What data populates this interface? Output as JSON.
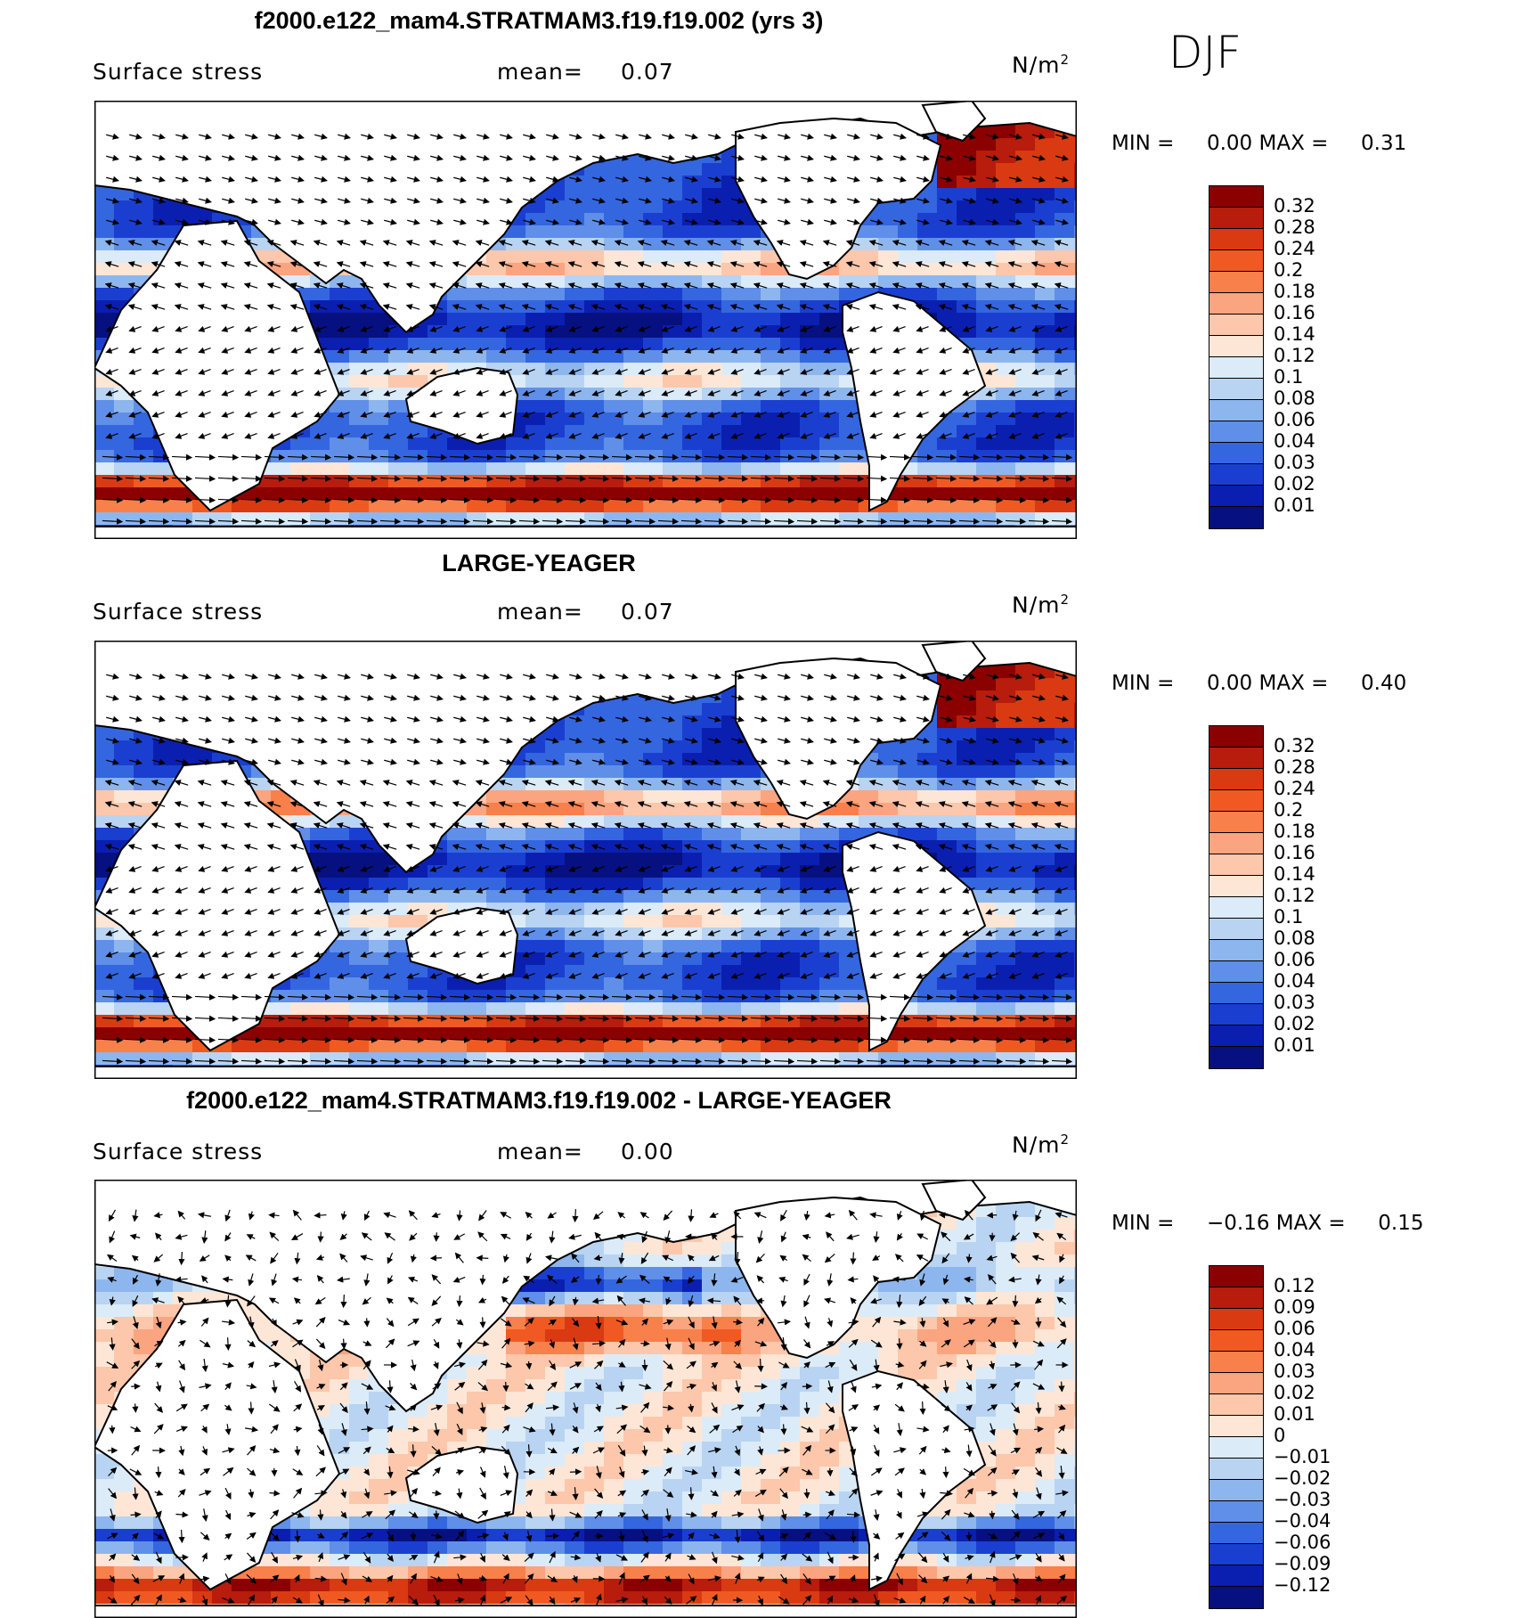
{
  "season": "DJF",
  "panels": [
    {
      "title": "f2000.e122_mam4.STRATMAM3.f19.f19.002 (yrs 3)",
      "variable": "Surface stress",
      "mean_label": "mean=",
      "mean_value": "0.07",
      "units": "N/m",
      "units_sup": "2",
      "min_label": "MIN =",
      "min_value": "0.00",
      "max_label": "MAX =",
      "max_value": "0.31",
      "colorbar": {
        "labels": [
          "0.32",
          "0.28",
          "0.24",
          "0.2",
          "0.18",
          "0.16",
          "0.14",
          "0.12",
          "0.1",
          "0.08",
          "0.06",
          "0.04",
          "0.03",
          "0.02",
          "0.01"
        ],
        "colors": [
          "#8b0000",
          "#b71c0c",
          "#d93a12",
          "#f05a22",
          "#f8804a",
          "#fba480",
          "#fcc7ab",
          "#fde6d6",
          "#dcebf8",
          "#b8d4f2",
          "#8eb6ee",
          "#5f8fe8",
          "#3466e0",
          "#1a3fd0",
          "#0a1fb0",
          "#061080"
        ]
      }
    },
    {
      "title": "LARGE-YEAGER",
      "variable": "Surface stress",
      "mean_label": "mean=",
      "mean_value": "0.07",
      "units": "N/m",
      "units_sup": "2",
      "min_label": "MIN =",
      "min_value": "0.00",
      "max_label": "MAX =",
      "max_value": "0.40",
      "colorbar": {
        "labels": [
          "0.32",
          "0.28",
          "0.24",
          "0.2",
          "0.18",
          "0.16",
          "0.14",
          "0.12",
          "0.1",
          "0.08",
          "0.06",
          "0.04",
          "0.03",
          "0.02",
          "0.01"
        ],
        "colors": [
          "#8b0000",
          "#b71c0c",
          "#d93a12",
          "#f05a22",
          "#f8804a",
          "#fba480",
          "#fcc7ab",
          "#fde6d6",
          "#dcebf8",
          "#b8d4f2",
          "#8eb6ee",
          "#5f8fe8",
          "#3466e0",
          "#1a3fd0",
          "#0a1fb0",
          "#061080"
        ]
      }
    },
    {
      "title": "f2000.e122_mam4.STRATMAM3.f19.f19.002 - LARGE-YEAGER",
      "variable": "Surface stress",
      "mean_label": "mean=",
      "mean_value": "0.00",
      "units": "N/m",
      "units_sup": "2",
      "min_label": "MIN =",
      "min_value": "−0.16",
      "max_label": "MAX =",
      "max_value": "0.15",
      "colorbar": {
        "labels": [
          "0.12",
          "0.09",
          "0.06",
          "0.04",
          "0.03",
          "0.02",
          "0.01",
          "0",
          "−0.01",
          "−0.02",
          "−0.03",
          "−0.04",
          "−0.06",
          "−0.09",
          "−0.12"
        ],
        "colors": [
          "#8b0000",
          "#b71c0c",
          "#d93a12",
          "#f05a22",
          "#f8804a",
          "#fba480",
          "#fcc7ab",
          "#fde6d6",
          "#dcebf8",
          "#b8d4f2",
          "#8eb6ee",
          "#5f8fe8",
          "#3466e0",
          "#1a3fd0",
          "#0a1fb0",
          "#061080"
        ]
      }
    }
  ]
}
